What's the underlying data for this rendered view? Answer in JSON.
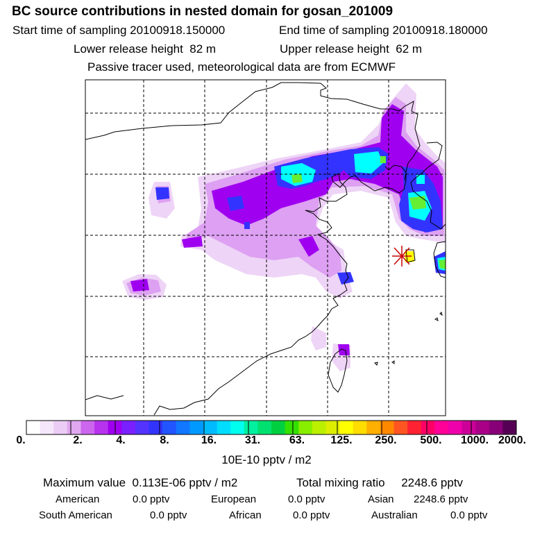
{
  "title": "BC  source contributions in nested domain for gosan_201009",
  "header": {
    "start_label": "Start time of sampling",
    "start_value": "20100918.150000",
    "end_label": "End time of sampling",
    "end_value": "20100918.180000",
    "lower_label": "Lower release height",
    "lower_value": "82 m",
    "upper_label": "Upper release height",
    "upper_value": "62 m",
    "tracer_note": "Passive tracer used, meteorological data are from ECMWF"
  },
  "colorbar": {
    "labels": [
      "0.",
      "2.",
      "4.",
      "8.",
      "16.",
      "31.",
      "63.",
      "125.",
      "250.",
      "500.",
      "1000.",
      "2000."
    ],
    "colors": [
      "#ffffff",
      "#f5e6fa",
      "#ebccf5",
      "#e0a8f0",
      "#cc66ee",
      "#b833ee",
      "#a000f0",
      "#7a20ff",
      "#5533ff",
      "#3333ff",
      "#2255ff",
      "#1177ff",
      "#0099ff",
      "#00bbff",
      "#00ddff",
      "#00ffee",
      "#00f0a0",
      "#00e070",
      "#00d040",
      "#33e000",
      "#88ee00",
      "#bbf000",
      "#ddee00",
      "#ffff00",
      "#ffdd00",
      "#ffb000",
      "#ff8800",
      "#ff5522",
      "#ff2233",
      "#ff0066",
      "#ff0099",
      "#ee00aa",
      "#cc0099",
      "#aa0088",
      "#880077",
      "#550055"
    ],
    "unit_label": "10E-10 pptv / m2"
  },
  "stats": {
    "max_label": "Maximum value",
    "max_value": "0.113E-06 pptv / m2",
    "total_label": "Total mixing ratio",
    "total_value": "2248.6 pptv",
    "american_label": "American",
    "american_value": "0.0 pptv",
    "european_label": "European",
    "european_value": "0.0 pptv",
    "asian_label": "Asian",
    "asian_value": "2248.6 pptv",
    "south_american_label": "South American",
    "south_american_value": "0.0 pptv",
    "african_label": "African",
    "african_value": "0.0 pptv",
    "australian_label": "Australian",
    "australian_value": "0.0 pptv"
  },
  "markers": {
    "release_site_color": "#cc0000"
  },
  "plume_colors": {
    "faint": "#eed4f6",
    "light": "#dda0f2",
    "violet": "#a000f0",
    "blue": "#3333ff",
    "cyan": "#00ffff",
    "green": "#66ee33",
    "yellow": "#ffff00"
  }
}
